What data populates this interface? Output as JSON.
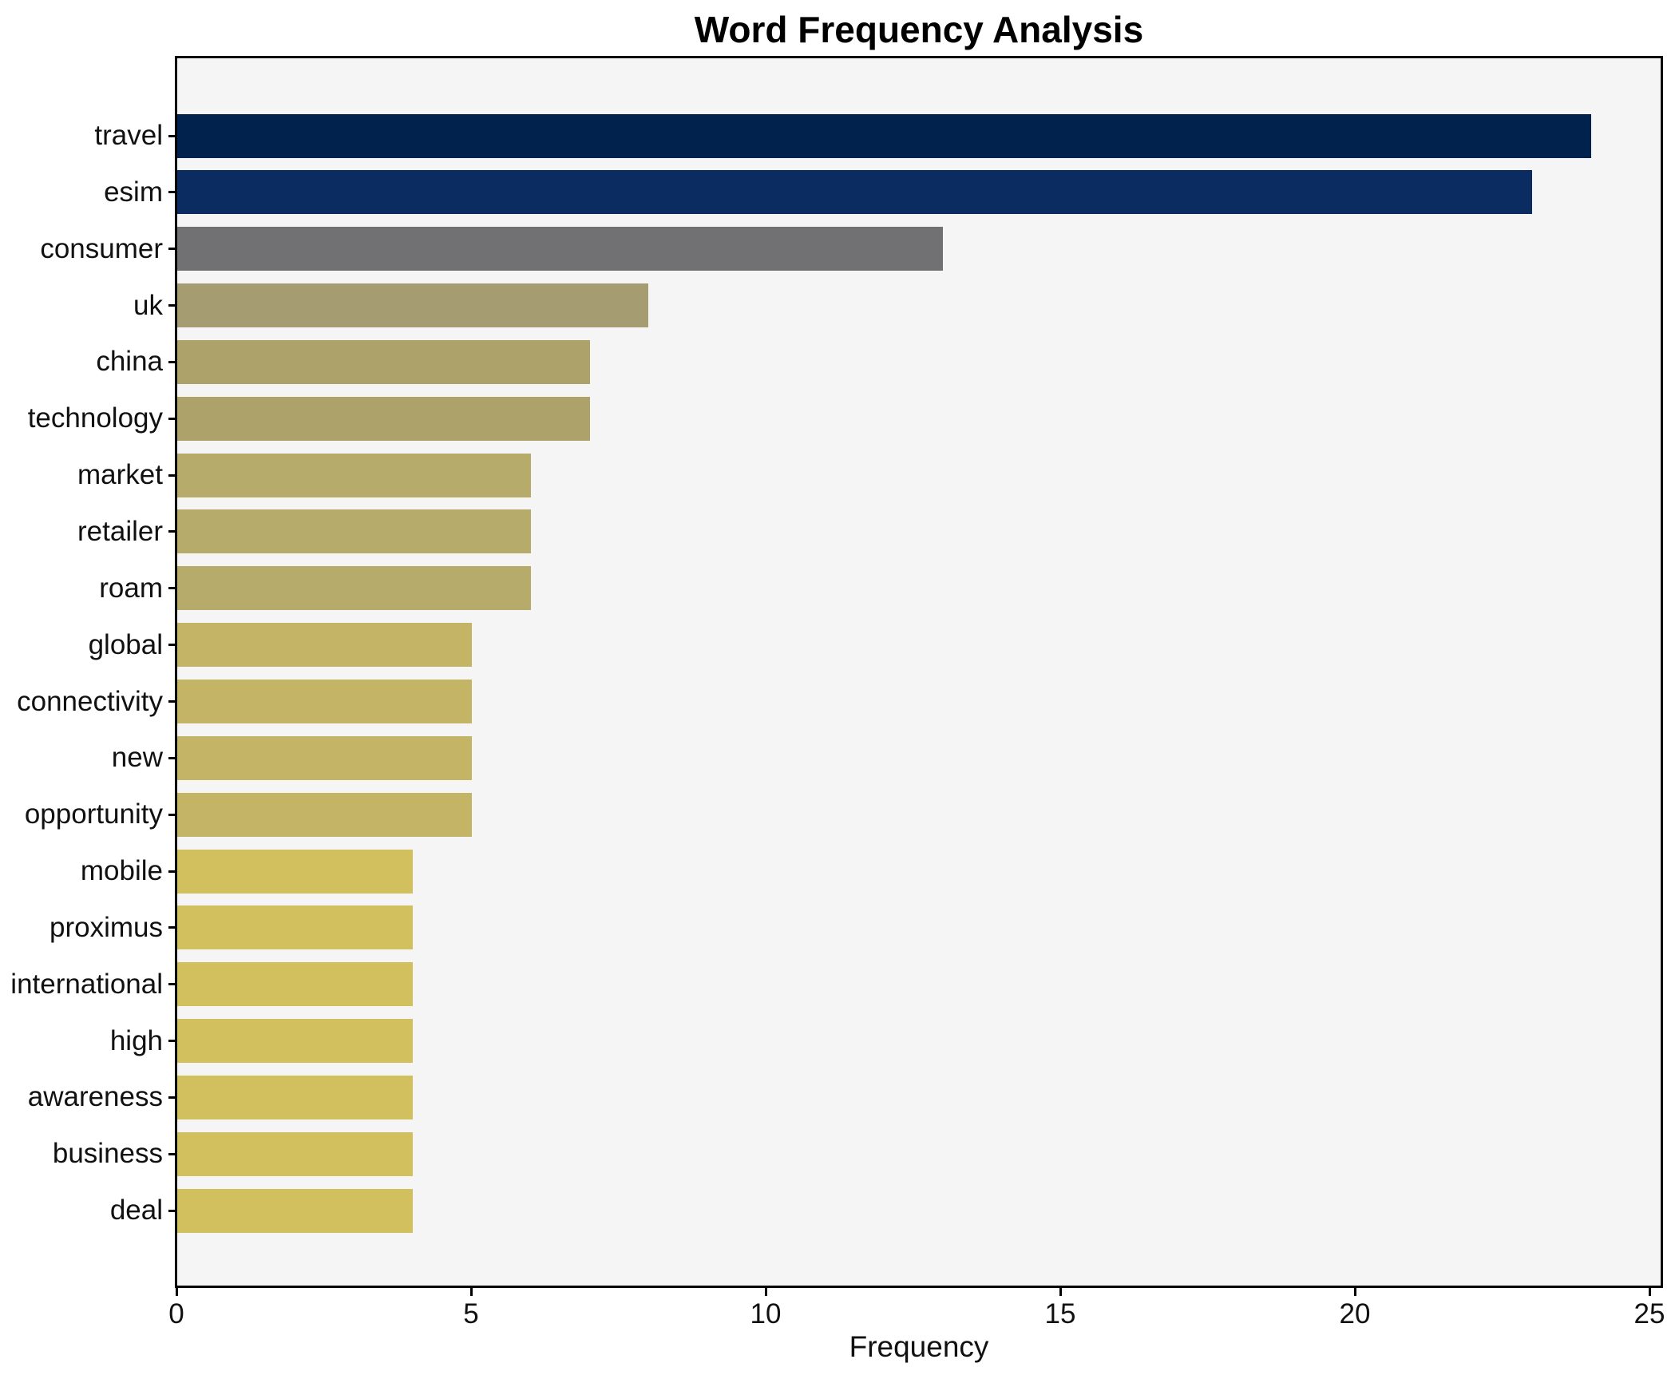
{
  "chart_data": {
    "type": "bar",
    "orientation": "horizontal",
    "title": "Word Frequency Analysis",
    "xlabel": "Frequency",
    "ylabel": "",
    "categories": [
      "travel",
      "esim",
      "consumer",
      "uk",
      "china",
      "technology",
      "market",
      "retailer",
      "roam",
      "global",
      "connectivity",
      "new",
      "opportunity",
      "mobile",
      "proximus",
      "international",
      "high",
      "awareness",
      "business",
      "deal"
    ],
    "values": [
      24,
      23,
      13,
      8,
      7,
      7,
      6,
      6,
      6,
      5,
      5,
      5,
      5,
      4,
      4,
      4,
      4,
      4,
      4,
      4
    ],
    "bar_colors": [
      "#02224e",
      "#0b2c61",
      "#717174",
      "#a59c72",
      "#aea26b",
      "#aea26b",
      "#b7ab6c",
      "#b7ab6c",
      "#b7ab6c",
      "#c4b466",
      "#c4b466",
      "#c4b466",
      "#c4b466",
      "#d2bf5e",
      "#d2bf5e",
      "#d2bf5e",
      "#d2bf5e",
      "#d2bf5e",
      "#d2bf5e",
      "#d2bf5e"
    ],
    "x_ticks": [
      0,
      5,
      10,
      15,
      20,
      25
    ],
    "xlim": [
      0,
      25.2
    ],
    "grid": false,
    "legend": "none",
    "plot_background": "#f5f5f5",
    "figure_background": "#ffffff",
    "spine_color": "#000000",
    "text_color": "#111111"
  }
}
